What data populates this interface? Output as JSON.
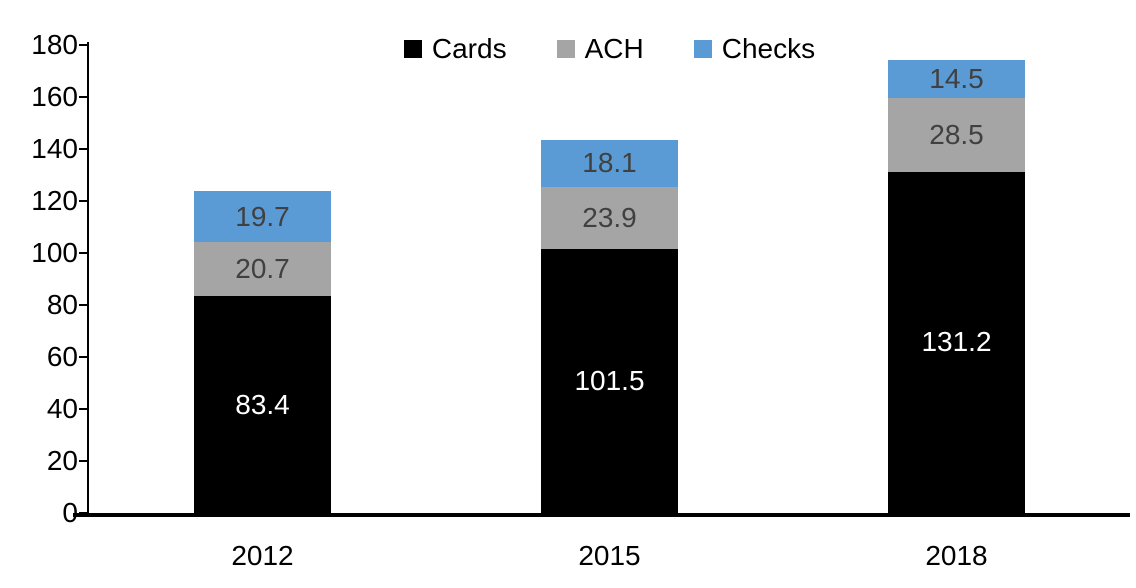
{
  "chart_data": {
    "type": "bar",
    "stacked": true,
    "title": "",
    "xlabel": "",
    "ylabel": "",
    "categories": [
      "2012",
      "2015",
      "2018"
    ],
    "series": [
      {
        "name": "Cards",
        "color": "#000000",
        "label_color": "#FFFFFF",
        "values": [
          83.4,
          101.5,
          131.2
        ]
      },
      {
        "name": "ACH",
        "color": "#A5A5A5",
        "label_color": "#404040",
        "values": [
          20.7,
          23.9,
          28.5
        ]
      },
      {
        "name": "Checks",
        "color": "#5B9BD5",
        "label_color": "#404040",
        "values": [
          19.7,
          18.1,
          14.5
        ]
      }
    ],
    "totals": [
      123.8,
      143.5,
      174.2
    ],
    "ylim": [
      0,
      180
    ],
    "ytick_step": 20,
    "y_tick_labels": [
      "0",
      "20",
      "40",
      "60",
      "80",
      "100",
      "120",
      "140",
      "160",
      "180"
    ],
    "legend_position": "top-center",
    "legend_entries": [
      "Cards",
      "ACH",
      "Checks"
    ],
    "grid": false,
    "axis_color": "#000000",
    "background_color": "#FFFFFF"
  }
}
